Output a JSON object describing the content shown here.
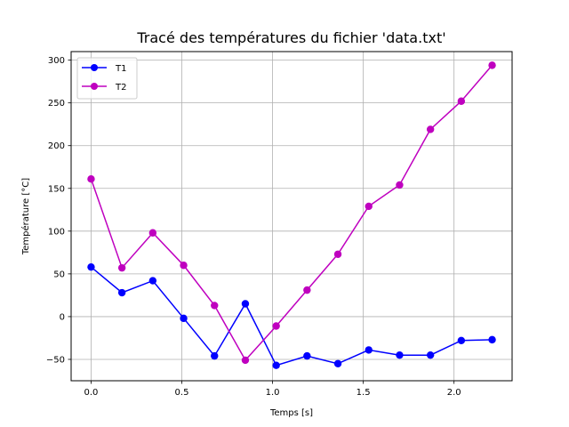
{
  "chart_data": {
    "type": "line",
    "title": "Tracé des températures du fichier 'data.txt'",
    "xlabel": "Temps [s]",
    "ylabel": "Température [°C]",
    "xlim": [
      -0.11,
      2.32
    ],
    "ylim": [
      -75,
      310
    ],
    "xticks": [
      0.0,
      0.5,
      1.0,
      1.5,
      2.0
    ],
    "xtick_labels": [
      "0.0",
      "0.5",
      "1.0",
      "1.5",
      "2.0"
    ],
    "yticks": [
      -50,
      0,
      50,
      100,
      150,
      200,
      250,
      300
    ],
    "ytick_labels": [
      "−50",
      "0",
      "50",
      "100",
      "150",
      "200",
      "250",
      "300"
    ],
    "grid": true,
    "legend_position": "top-left",
    "x": [
      0.0,
      0.17,
      0.34,
      0.51,
      0.68,
      0.85,
      1.02,
      1.19,
      1.36,
      1.53,
      1.7,
      1.87,
      2.04,
      2.21
    ],
    "series": [
      {
        "name": "T1",
        "color": "#0000ff",
        "marker": "circle",
        "values": [
          58,
          28,
          42,
          -2,
          -46,
          15,
          -57,
          -46,
          -55,
          -39,
          -45,
          -45,
          -28,
          -27
        ]
      },
      {
        "name": "T2",
        "color": "#bf00bf",
        "marker": "circle",
        "values": [
          161,
          57,
          98,
          60,
          13,
          -51,
          -11,
          31,
          73,
          129,
          154,
          219,
          252,
          294
        ]
      }
    ]
  }
}
